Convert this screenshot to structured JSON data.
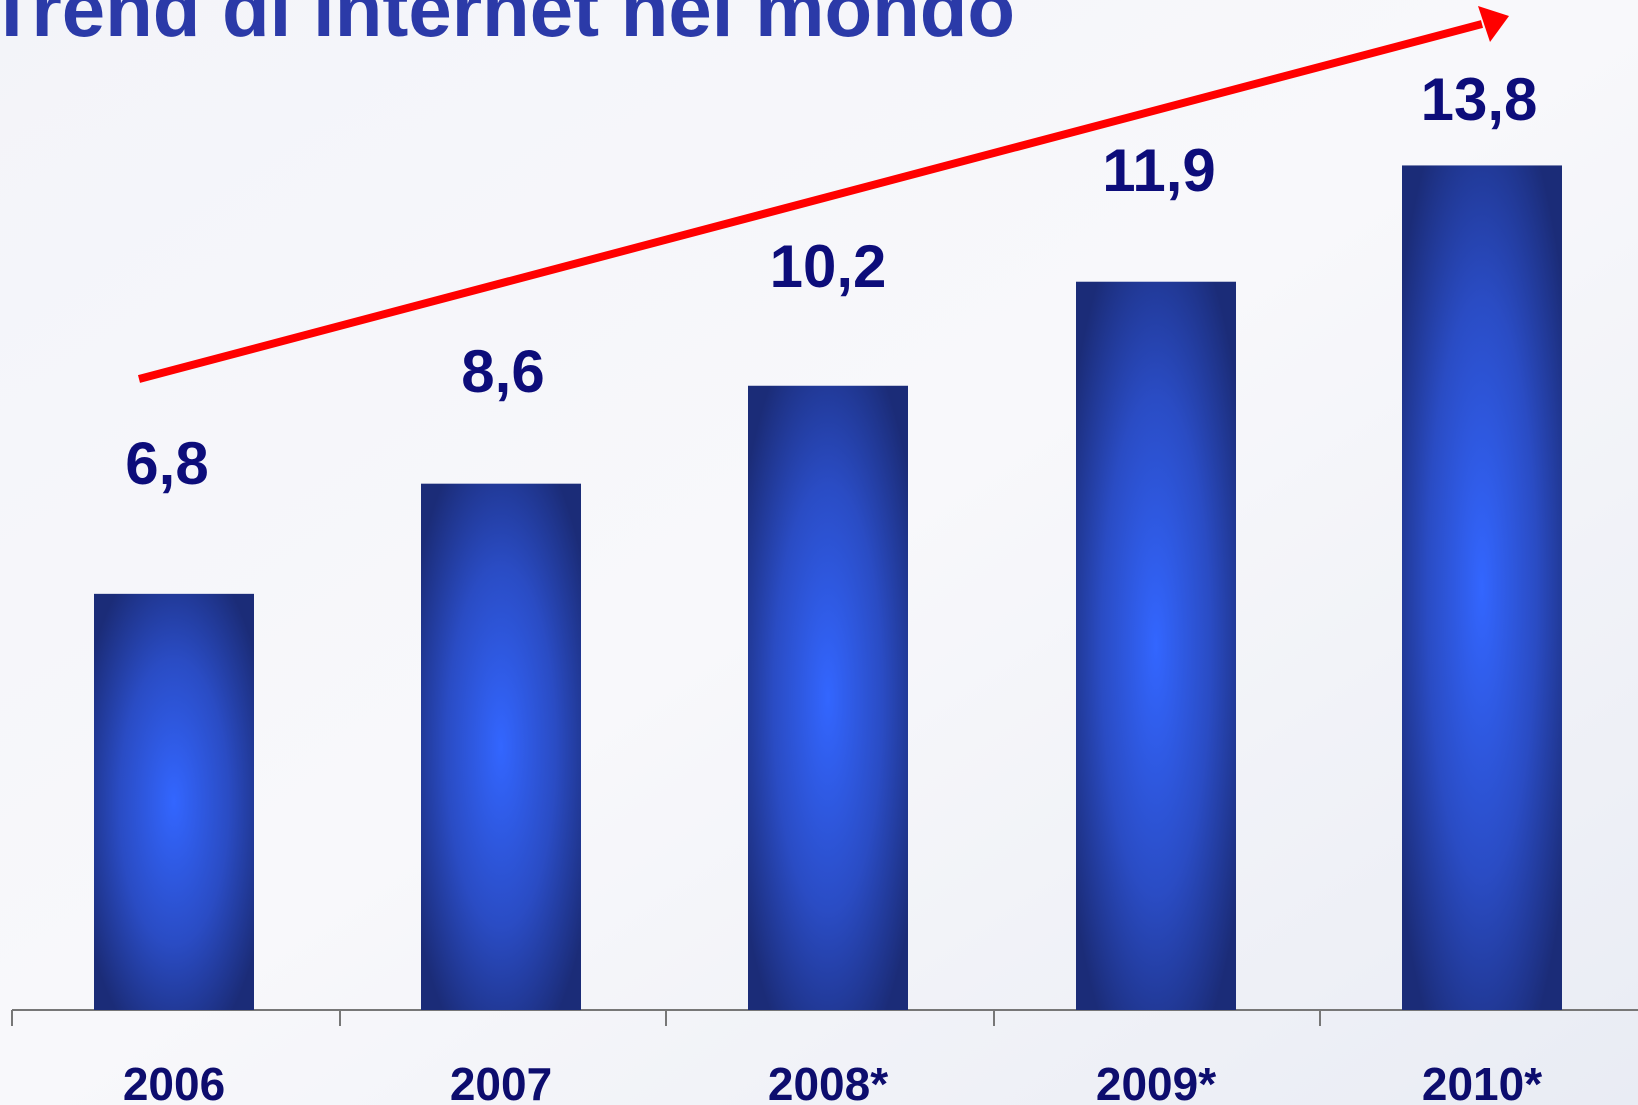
{
  "chart_data": {
    "type": "bar",
    "title": "Trend di internet nel mondo",
    "categories": [
      "2006",
      "2007",
      "2008*",
      "2009*",
      "2010*"
    ],
    "values": [
      6.8,
      8.6,
      10.2,
      11.9,
      13.8
    ],
    "value_labels": [
      "6,8",
      "8,6",
      "10,2",
      "11,9",
      "13,8"
    ],
    "color": "#3366ff"
  }
}
